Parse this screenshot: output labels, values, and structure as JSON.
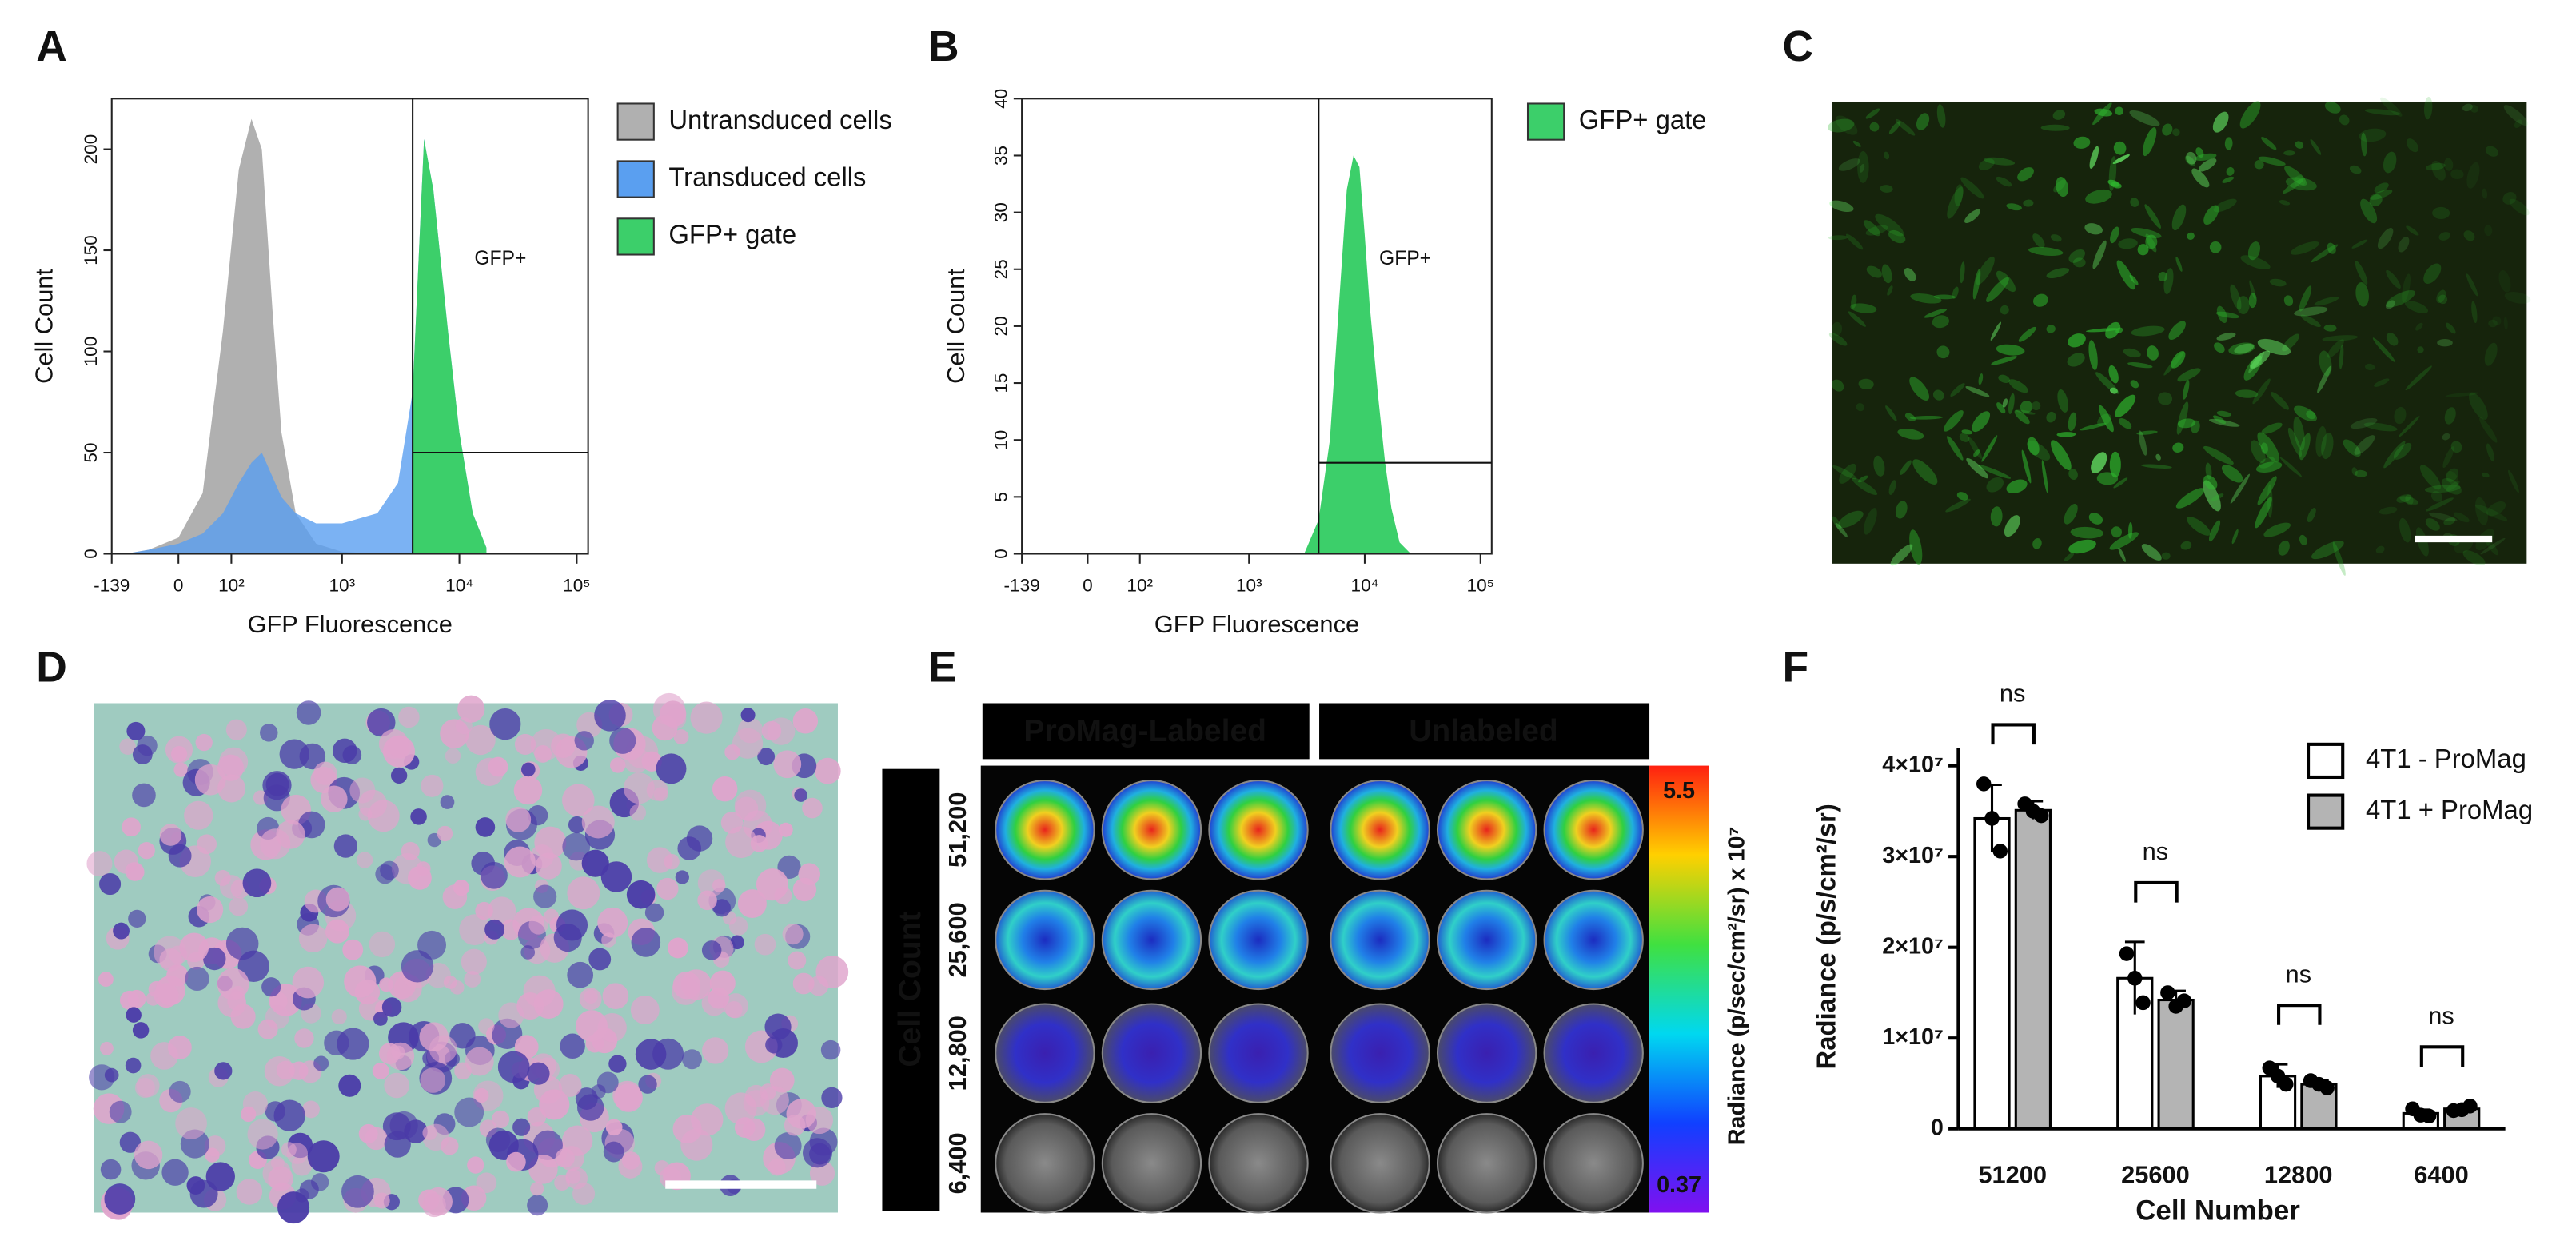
{
  "panel_labels": [
    "A",
    "B",
    "C",
    "D",
    "E",
    "F"
  ],
  "chart_data": [
    {
      "type": "area",
      "xscale": "biexponential",
      "xlabel": "GFP Fluorescence",
      "ylabel": "Cell Count",
      "x": [
        -100,
        -50,
        0,
        40,
        80,
        120,
        160,
        200,
        250,
        300,
        400,
        600,
        1000,
        2000,
        3000,
        4000,
        5000,
        6000,
        8000,
        10000,
        13000,
        17000
      ],
      "series": [
        {
          "name": "Untransduced cells",
          "color": "#b0b0b0",
          "values": [
            0,
            2,
            8,
            30,
            110,
            190,
            215,
            200,
            120,
            60,
            20,
            5,
            1,
            0,
            0,
            0,
            0,
            0,
            0,
            0,
            0,
            0
          ]
        },
        {
          "name": "Transduced cells",
          "color": "#5a9ff0",
          "values": [
            0,
            2,
            5,
            10,
            20,
            35,
            45,
            50,
            38,
            28,
            20,
            15,
            15,
            20,
            35,
            80,
            205,
            180,
            110,
            60,
            20,
            3
          ]
        },
        {
          "name": "GFP+ gate",
          "color": "#3ccf6a",
          "values": [
            null,
            null,
            null,
            null,
            null,
            null,
            null,
            null,
            null,
            null,
            null,
            null,
            null,
            null,
            null,
            80,
            205,
            180,
            110,
            60,
            20,
            3
          ]
        }
      ],
      "gate": {
        "x": 4000,
        "y": 50,
        "label": "GFP+"
      },
      "xlim": [
        -139,
        125000
      ],
      "xticks": [
        -139,
        0,
        {
          "value": 100,
          "label": "10²"
        },
        {
          "value": 1000,
          "label": "10³"
        },
        {
          "value": 10000,
          "label": "10⁴"
        },
        {
          "value": 100000,
          "label": "10⁵"
        }
      ],
      "ylim": [
        0,
        225
      ],
      "yticks": [
        0,
        50,
        100,
        150,
        200
      ]
    },
    {
      "type": "area",
      "xscale": "biexponential",
      "xlabel": "GFP Fluorescence",
      "ylabel": "Cell Count",
      "x": [
        3000,
        4000,
        5000,
        6000,
        7000,
        8000,
        9000,
        10000,
        11000,
        13000,
        15000,
        17000,
        20000,
        25000
      ],
      "series": [
        {
          "name": "GFP+ gate",
          "color": "#3ccf6a",
          "values": [
            0,
            3,
            10,
            22,
            32,
            35,
            34,
            28,
            22,
            14,
            8,
            4,
            1,
            0
          ]
        }
      ],
      "gate": {
        "x": 4000,
        "y": 8,
        "label": "GFP+"
      },
      "xlim": [
        -139,
        125000
      ],
      "xticks": [
        -139,
        0,
        {
          "value": 100,
          "label": "10²"
        },
        {
          "value": 1000,
          "label": "10³"
        },
        {
          "value": 10000,
          "label": "10⁴"
        },
        {
          "value": 100000,
          "label": "10⁵"
        }
      ],
      "ylim": [
        0,
        40
      ],
      "yticks": [
        0,
        5,
        10,
        15,
        20,
        25,
        30,
        35,
        40
      ]
    },
    {
      "type": "bar",
      "xlabel": "Cell Number",
      "ylabel": "Radiance (p/s/cm²/sr)",
      "categories": [
        "51200",
        "25600",
        "12800",
        "6400"
      ],
      "series": [
        {
          "name": "4T1 - ProMag",
          "color": "#ffffff",
          "values": [
            34200000,
            16600000,
            5800000,
            1700000
          ],
          "errors": [
            3700000,
            4000000,
            1300000,
            400000
          ],
          "points": [
            [
              38000000,
              34200000,
              30600000
            ],
            [
              19300000,
              16600000,
              13900000
            ],
            [
              6700000,
              5800000,
              4900000
            ],
            [
              2200000,
              1500000,
              1400000
            ]
          ]
        },
        {
          "name": "4T1 + ProMag",
          "color": "#b4b4b4",
          "values": [
            35100000,
            14200000,
            4900000,
            2200000
          ],
          "errors": [
            1000000,
            1000000,
            400000,
            300000
          ],
          "points": [
            [
              35800000,
              35000000,
              34500000
            ],
            [
              15000000,
              13500000,
              14100000
            ],
            [
              5300000,
              4900000,
              4500000
            ],
            [
              2000000,
              2100000,
              2500000
            ]
          ]
        }
      ],
      "annotations": [
        "ns",
        "ns",
        "ns",
        "ns"
      ],
      "ylim": [
        0,
        42000000
      ],
      "yticks": [
        0,
        {
          "value": 10000000,
          "label": "1×10⁷"
        },
        {
          "value": 20000000,
          "label": "2×10⁷"
        },
        {
          "value": 30000000,
          "label": "3×10⁷"
        },
        {
          "value": 40000000,
          "label": "4×10⁷"
        }
      ]
    }
  ],
  "panel_e": {
    "column_headers": [
      "ProMag-Labeled",
      "Unlabeled"
    ],
    "row_title": "Cell Count",
    "row_labels": [
      "51,200",
      "25,600",
      "12,800",
      "6,400"
    ],
    "colorbar": {
      "max": 5.5,
      "min": 0.37,
      "label": "Radiance (p/sec/cm²/sr) x 10⁷"
    }
  }
}
